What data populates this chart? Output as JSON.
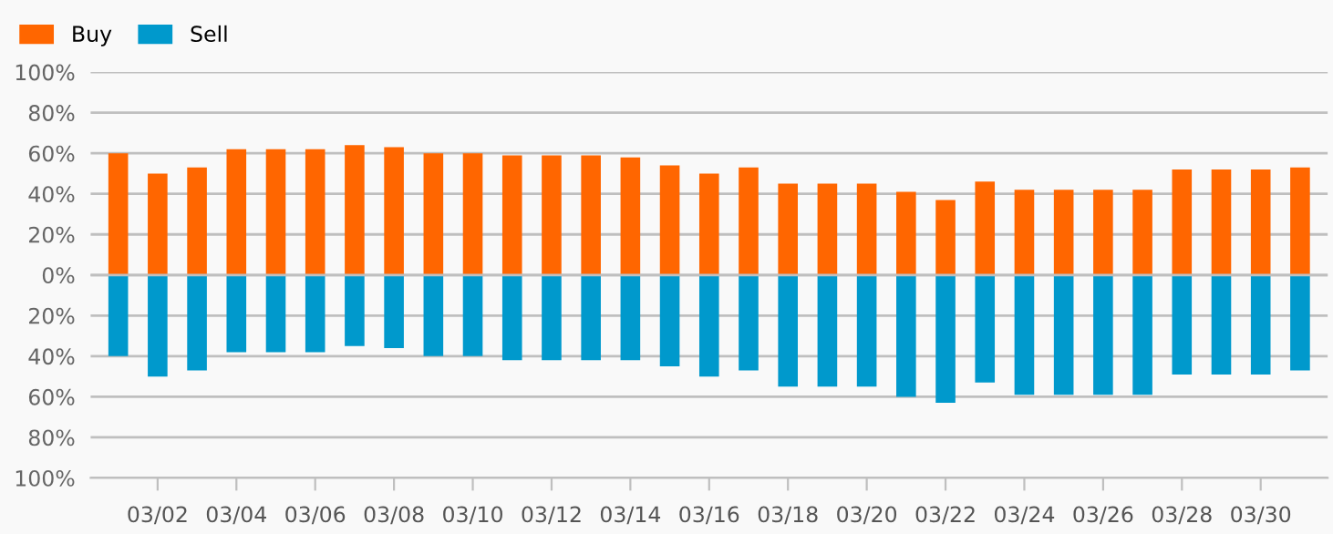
{
  "chart_data": {
    "type": "bar",
    "stacked": true,
    "categories": [
      null,
      "03/02",
      null,
      "03/04",
      null,
      "03/06",
      null,
      "03/08",
      null,
      "03/10",
      null,
      "03/12",
      null,
      "03/14",
      null,
      "03/16",
      null,
      "03/18",
      null,
      "03/20",
      null,
      "03/22",
      null,
      "03/24",
      null,
      "03/26",
      null,
      "03/28",
      null,
      "03/30",
      null
    ],
    "series": [
      {
        "name": "Buy",
        "color": "#ff6600",
        "values": [
          60,
          50,
          53,
          62,
          62,
          62,
          64,
          63,
          60,
          60,
          59,
          59,
          59,
          58,
          54,
          50,
          53,
          45,
          45,
          45,
          41,
          37,
          46,
          42,
          42,
          42,
          42,
          52,
          52,
          52,
          53
        ]
      },
      {
        "name": "Sell",
        "color": "#0099cc",
        "values": [
          -40,
          -50,
          -47,
          -38,
          -38,
          -38,
          -35,
          -36,
          -40,
          -40,
          -42,
          -42,
          -42,
          -42,
          -45,
          -50,
          -47,
          -55,
          -55,
          -55,
          -60,
          -63,
          -53,
          -59,
          -59,
          -59,
          -59,
          -49,
          -49,
          -49,
          -47
        ]
      }
    ],
    "ylim": [
      -100,
      100
    ],
    "yticks": [
      {
        "value": -100,
        "label": "100%"
      },
      {
        "value": -80,
        "label": "80%"
      },
      {
        "value": -60,
        "label": "60%"
      },
      {
        "value": -40,
        "label": "40%"
      },
      {
        "value": -20,
        "label": "20%"
      },
      {
        "value": 0,
        "label": "0%"
      },
      {
        "value": 20,
        "label": "20%"
      },
      {
        "value": 40,
        "label": "40%"
      },
      {
        "value": 60,
        "label": "60%"
      },
      {
        "value": 80,
        "label": "80%"
      },
      {
        "value": 100,
        "label": "100%"
      }
    ],
    "grid": "y",
    "legend": "top left"
  }
}
